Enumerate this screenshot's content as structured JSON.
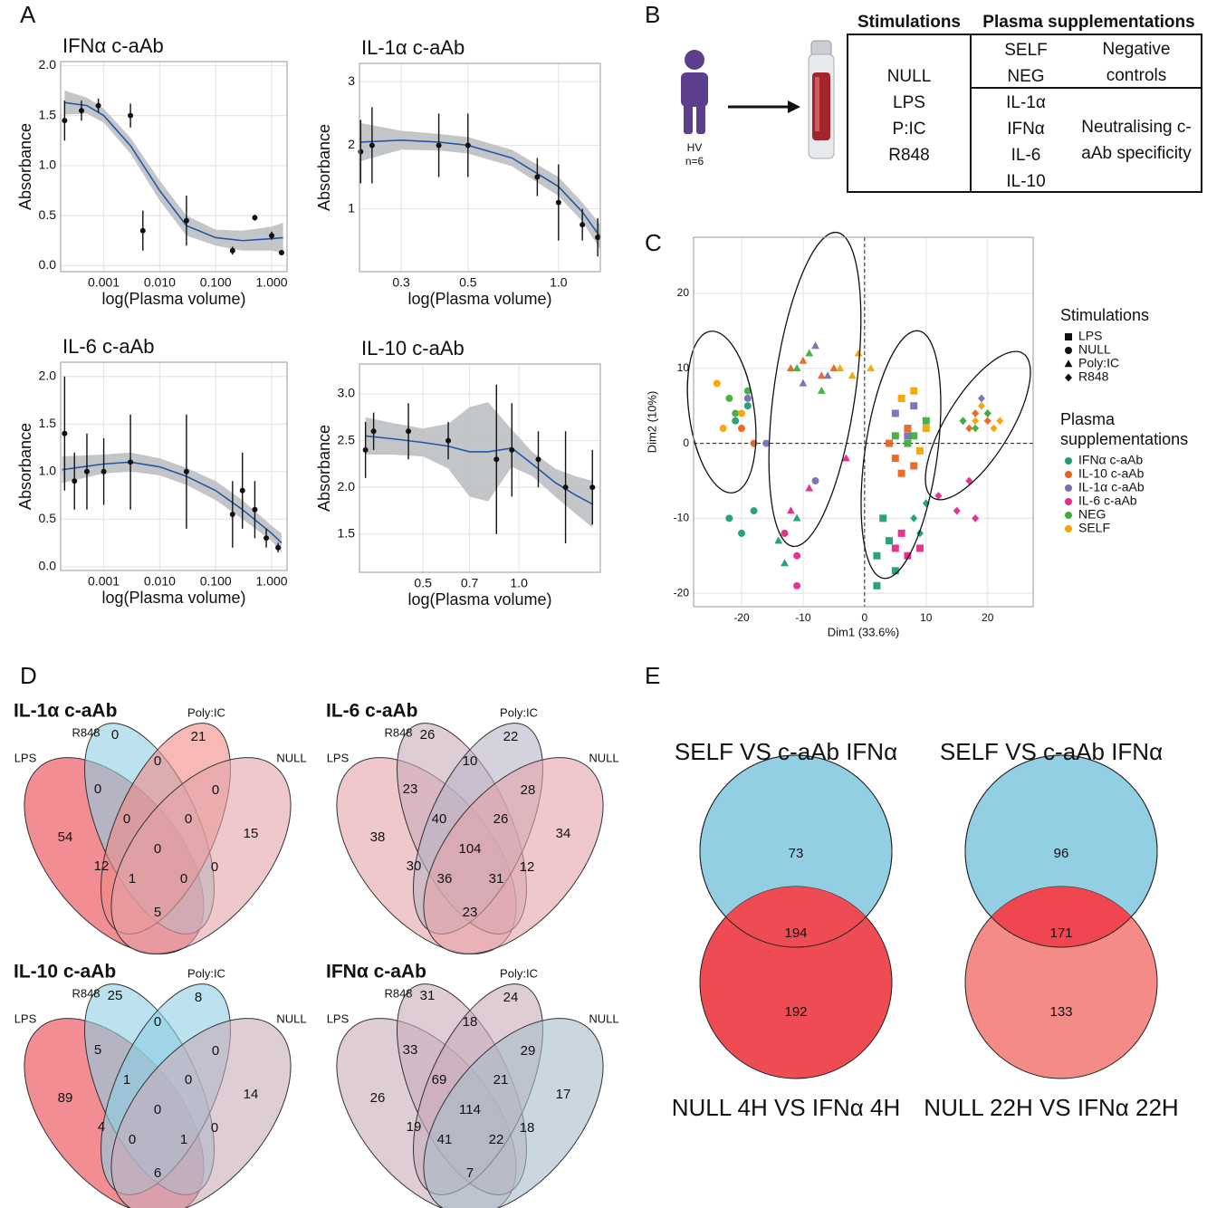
{
  "panel_labels": [
    "A",
    "B",
    "C",
    "D",
    "E"
  ],
  "diagram": {
    "subject": "HV",
    "n": "n=6",
    "table": {
      "headers": [
        "Stimulations",
        "Plasma supplementations"
      ],
      "stimulations": [
        "NULL",
        "LPS",
        "P:IC",
        "R848"
      ],
      "groups": [
        {
          "items": [
            "SELF",
            "NEG"
          ],
          "label": "Negative controls"
        },
        {
          "items": [
            "IL-1α",
            "IFNα",
            "IL-6",
            "IL-10"
          ],
          "label": "Neutralising c-aAb specificity"
        }
      ]
    }
  },
  "chart_data": [
    {
      "type": "line",
      "title": "IFNα c-aAb",
      "xlabel": "log(Plasma volume)",
      "ylabel": "Absorbance",
      "xscale": "log",
      "grid": true,
      "xlim": [
        0.00017,
        1.88
      ],
      "xticks": [
        0.001,
        {
          "value": 0.01,
          "label": "0.010"
        },
        {
          "value": 0.1,
          "label": "0.100"
        },
        {
          "value": 1,
          "label": "1.000"
        }
      ],
      "ylim": [
        -0.06,
        2.04
      ],
      "yticks": [
        {
          "value": 0,
          "label": "0.0"
        },
        0.5,
        {
          "value": 1,
          "label": "1.0"
        },
        1.5,
        {
          "value": 2,
          "label": "2.0"
        }
      ],
      "color": "#2557a7",
      "band_color": "#bcc0c2",
      "points": {
        "x": [
          0.0002,
          0.0004,
          0.0008,
          0.003,
          0.005,
          0.03,
          0.2,
          0.5,
          1.0,
          1.5
        ],
        "values": [
          1.45,
          1.55,
          1.6,
          1.5,
          0.35,
          0.45,
          0.15,
          0.48,
          0.3,
          0.13
        ],
        "errors": [
          0.2,
          0.1,
          0.07,
          0.12,
          0.2,
          0.25,
          0.04,
          0.03,
          0.04,
          0.02
        ]
      },
      "fit": {
        "x": [
          0.0002,
          0.0005,
          0.001,
          0.003,
          0.01,
          0.03,
          0.1,
          0.3,
          1,
          1.6
        ],
        "values": [
          1.63,
          1.6,
          1.5,
          1.2,
          0.75,
          0.4,
          0.28,
          0.25,
          0.27,
          0.28
        ],
        "lower": [
          1.51,
          1.52,
          1.43,
          1.12,
          0.65,
          0.3,
          0.2,
          0.15,
          0.15,
          0.13
        ],
        "upper": [
          1.75,
          1.68,
          1.57,
          1.28,
          0.85,
          0.5,
          0.36,
          0.35,
          0.39,
          0.43
        ]
      }
    },
    {
      "type": "line",
      "title": "IL-1α c-aAb",
      "xlabel": "log(Plasma volume)",
      "ylabel": "Absorbance",
      "xscale": "log",
      "grid": true,
      "xlim": [
        0.218,
        1.377
      ],
      "xticks": [
        0.3,
        0.5,
        {
          "value": 1,
          "label": "1.0"
        }
      ],
      "ylim": [
        0.01,
        3.29
      ],
      "yticks": [
        1,
        2,
        3
      ],
      "color": "#2557a7",
      "band_color": "#bcc0c2",
      "points": {
        "x": [
          0.22,
          0.24,
          0.4,
          0.5,
          0.85,
          1.0,
          1.2,
          1.35
        ],
        "values": [
          1.9,
          2.0,
          2.0,
          2.0,
          1.5,
          1.1,
          0.75,
          0.55
        ],
        "errors": [
          0.5,
          0.6,
          0.5,
          0.5,
          0.3,
          0.6,
          0.25,
          0.3
        ]
      },
      "fit": {
        "x": [
          0.22,
          0.3,
          0.4,
          0.5,
          0.7,
          1.0,
          1.2,
          1.38
        ],
        "values": [
          2.05,
          2.08,
          2.05,
          2.0,
          1.8,
          1.35,
          0.95,
          0.55
        ],
        "lower": [
          1.75,
          1.93,
          1.92,
          1.87,
          1.67,
          1.2,
          0.8,
          0.35
        ],
        "upper": [
          2.35,
          2.23,
          2.18,
          2.13,
          1.93,
          1.5,
          1.1,
          0.75
        ]
      }
    },
    {
      "type": "line",
      "title": "IL-6 c-aAb",
      "xlabel": "log(Plasma volume)",
      "ylabel": "Absorbance",
      "xscale": "log",
      "grid": true,
      "xlim": [
        0.00017,
        1.88
      ],
      "xticks": [
        0.001,
        {
          "value": 0.01,
          "label": "0.010"
        },
        {
          "value": 0.1,
          "label": "0.100"
        },
        {
          "value": 1,
          "label": "1.000"
        }
      ],
      "ylim": [
        -0.04,
        2.15
      ],
      "yticks": [
        {
          "value": 0,
          "label": "0.0"
        },
        0.5,
        {
          "value": 1,
          "label": "1.0"
        },
        1.5,
        {
          "value": 2,
          "label": "2.0"
        }
      ],
      "color": "#2557a7",
      "band_color": "#bcc0c2",
      "points": {
        "x": [
          0.0002,
          0.0003,
          0.0005,
          0.001,
          0.003,
          0.03,
          0.2,
          0.3,
          0.5,
          0.8,
          1.3
        ],
        "values": [
          1.4,
          0.9,
          1.0,
          1.0,
          1.1,
          1.0,
          0.55,
          0.8,
          0.6,
          0.3,
          0.2
        ],
        "errors": [
          0.6,
          0.3,
          0.4,
          0.35,
          0.5,
          0.6,
          0.35,
          0.4,
          0.3,
          0.1,
          0.05
        ]
      },
      "fit": {
        "x": [
          0.00018,
          0.001,
          0.003,
          0.01,
          0.03,
          0.1,
          0.3,
          1,
          1.5
        ],
        "values": [
          1.02,
          1.08,
          1.1,
          1.05,
          0.95,
          0.8,
          0.6,
          0.35,
          0.25
        ],
        "lower": [
          0.88,
          0.98,
          1.0,
          0.96,
          0.86,
          0.7,
          0.5,
          0.27,
          0.15
        ],
        "upper": [
          1.16,
          1.18,
          1.2,
          1.14,
          1.04,
          0.9,
          0.7,
          0.43,
          0.35
        ]
      }
    },
    {
      "type": "line",
      "title": "IL-10 c-aAb",
      "xlabel": "log(Plasma volume)",
      "ylabel": "Absorbance",
      "xscale": "log",
      "grid": true,
      "xlim": [
        0.316,
        1.8
      ],
      "xticks": [
        0.5,
        0.7,
        {
          "value": 1,
          "label": "1.0"
        }
      ],
      "ylim": [
        1.09,
        3.32
      ],
      "yticks": [
        1.5,
        {
          "value": 2,
          "label": "2.0"
        },
        2.5,
        {
          "value": 3,
          "label": "3.0"
        }
      ],
      "color": "#2557a7",
      "band_color": "#bcc0c2",
      "points": {
        "x": [
          0.33,
          0.35,
          0.45,
          0.6,
          0.85,
          0.95,
          1.15,
          1.4,
          1.7
        ],
        "values": [
          2.4,
          2.6,
          2.6,
          2.5,
          2.3,
          2.4,
          2.3,
          2.0,
          2.0
        ],
        "errors": [
          0.3,
          0.2,
          0.3,
          0.2,
          0.8,
          0.5,
          0.3,
          0.6,
          0.4
        ]
      },
      "fit": {
        "x": [
          0.33,
          0.4,
          0.5,
          0.6,
          0.7,
          0.8,
          0.95,
          1.1,
          1.3,
          1.5,
          1.7
        ],
        "values": [
          2.55,
          2.52,
          2.48,
          2.44,
          2.38,
          2.38,
          2.42,
          2.25,
          2.05,
          1.92,
          1.82
        ],
        "lower": [
          2.35,
          2.35,
          2.33,
          2.2,
          1.9,
          1.85,
          2.22,
          2.12,
          1.9,
          1.72,
          1.57
        ],
        "upper": [
          2.75,
          2.69,
          2.63,
          2.68,
          2.86,
          2.91,
          2.62,
          2.38,
          2.2,
          2.12,
          2.07
        ]
      }
    },
    {
      "type": "scatter",
      "xlabel": "Dim1 (33.6%)",
      "ylabel": "Dim2 (10%)",
      "grid": true,
      "xlim": [
        -27.8,
        27.4
      ],
      "xticks": [
        -20,
        -10,
        0,
        10,
        20
      ],
      "ylim": [
        -21.8,
        27.5
      ],
      "yticks": [
        -20,
        -10,
        0,
        10,
        20
      ],
      "stimulations": {
        "title": "Stimulations",
        "names": [
          "LPS",
          "NULL",
          "Poly:IC",
          "R848"
        ]
      },
      "legend_title": [
        "Plasma",
        "supplementations"
      ],
      "series": [
        {
          "name": "IFNα c-aAb",
          "color": "#1b9e77",
          "x": [
            -22,
            -20,
            -18,
            -21,
            -19,
            -13,
            -14,
            -11,
            2,
            4,
            5,
            3,
            2,
            8,
            10,
            9
          ],
          "values": [
            -10,
            -12,
            -9,
            3,
            5,
            -16,
            -13,
            -10,
            -15,
            -13,
            -17,
            -10,
            -19,
            -10,
            -8,
            -12
          ],
          "stimulation_index": [
            1,
            1,
            1,
            1,
            1,
            2,
            2,
            2,
            0,
            0,
            0,
            0,
            0,
            3,
            3,
            3
          ]
        },
        {
          "name": "IL-10 c-aAb",
          "color": "#e8641b",
          "x": [
            -18,
            -20,
            -12,
            -10,
            -7,
            -5,
            5,
            6,
            7,
            4,
            8,
            18,
            20,
            17
          ],
          "values": [
            0,
            2,
            10,
            11,
            9,
            10,
            -2,
            -4,
            2,
            0,
            -3,
            4,
            3,
            2
          ],
          "stimulation_index": [
            1,
            1,
            2,
            2,
            2,
            2,
            0,
            0,
            0,
            0,
            0,
            3,
            3,
            3
          ]
        },
        {
          "name": "IL-1α c-aAb",
          "color": "#7570b3",
          "x": [
            -19,
            -16,
            -8,
            -10,
            -8,
            -6,
            5,
            7,
            8,
            19,
            20,
            16
          ],
          "values": [
            6,
            0,
            -5,
            8,
            13,
            9,
            4,
            1,
            5,
            6,
            4,
            3
          ],
          "stimulation_index": [
            1,
            1,
            1,
            2,
            2,
            2,
            0,
            0,
            0,
            3,
            3,
            3
          ]
        },
        {
          "name": "IL-6 c-aAb",
          "color": "#e7298a",
          "x": [
            -11,
            -13,
            -11,
            -9,
            -12,
            -3,
            5,
            7,
            9,
            6,
            12,
            15,
            17,
            18
          ],
          "values": [
            -19,
            -12,
            -15,
            -6,
            -9,
            -2,
            -14,
            -15,
            -14,
            -12,
            -7,
            -9,
            -5,
            -10
          ],
          "stimulation_index": [
            1,
            1,
            1,
            2,
            2,
            2,
            0,
            0,
            0,
            0,
            3,
            3,
            3,
            3
          ]
        },
        {
          "name": "NEG",
          "color": "#3fae3a",
          "x": [
            -21,
            -19,
            -22,
            -9,
            -11,
            -7,
            5,
            7,
            8,
            10,
            16,
            18,
            20
          ],
          "values": [
            4,
            7,
            6,
            12,
            10,
            7,
            1,
            0,
            1,
            3,
            3,
            2,
            4
          ],
          "stimulation_index": [
            1,
            1,
            1,
            2,
            2,
            2,
            0,
            0,
            0,
            0,
            3,
            3,
            3
          ]
        },
        {
          "name": "SELF",
          "color": "#f5a300",
          "x": [
            -24,
            -20,
            -23,
            -4,
            -2,
            -1,
            1,
            6,
            8,
            10,
            9,
            18,
            21,
            19,
            22
          ],
          "values": [
            8,
            4,
            2,
            10,
            9,
            12,
            10,
            6,
            7,
            2,
            -1,
            3,
            2,
            5,
            3
          ],
          "stimulation_index": [
            1,
            1,
            1,
            2,
            2,
            2,
            2,
            0,
            0,
            0,
            0,
            3,
            3,
            3,
            3
          ]
        }
      ]
    },
    {
      "type": "venn4",
      "title": "IL-1α c-aAb",
      "sets": [
        "LPS",
        "R848",
        "Poly:IC",
        "NULL"
      ],
      "colors": [
        "#e8414b",
        "#8ecfe3",
        "#f08a86",
        "#e4a3a8"
      ],
      "regions": [
        0,
        21,
        54,
        15,
        0,
        0,
        0,
        0,
        0,
        0,
        12,
        0,
        1,
        0,
        5
      ]
    },
    {
      "type": "venn4",
      "title": "IL-6 c-aAb",
      "sets": [
        "LPS",
        "R848",
        "Poly:IC",
        "NULL"
      ],
      "colors": [
        "#e4a3a8",
        "#c9abbb",
        "#b9b4c8",
        "#e4a3a8"
      ],
      "regions": [
        26,
        22,
        38,
        34,
        10,
        23,
        28,
        40,
        26,
        104,
        30,
        12,
        36,
        31,
        23
      ]
    },
    {
      "type": "venn4",
      "title": "IL-10 c-aAb",
      "sets": [
        "LPS",
        "R848",
        "Poly:IC",
        "NULL"
      ],
      "colors": [
        "#e8414b",
        "#8ecfe3",
        "#8ecfe3",
        "#c9abbb"
      ],
      "regions": [
        25,
        8,
        89,
        14,
        0,
        5,
        0,
        1,
        0,
        0,
        4,
        0,
        0,
        1,
        6
      ]
    },
    {
      "type": "venn4",
      "title": "IFNα c-aAb",
      "sets": [
        "LPS",
        "R848",
        "Poly:IC",
        "NULL"
      ],
      "colors": [
        "#c9abbb",
        "#c9abbb",
        "#c9abbb",
        "#a9bccb"
      ],
      "regions": [
        31,
        24,
        26,
        17,
        18,
        33,
        29,
        69,
        21,
        114,
        19,
        18,
        41,
        22,
        7
      ]
    },
    {
      "type": "venn2",
      "sets": [
        "SELF VS c-aAb IFNα",
        "NULL 4H VS IFNα 4H"
      ],
      "colors": [
        "#92cfe2",
        "#ee4b52",
        "#ee4b52"
      ],
      "regions": [
        73,
        194,
        192
      ]
    },
    {
      "type": "venn2",
      "sets": [
        "SELF VS c-aAb IFNα",
        "NULL 22H VS IFNα 22H"
      ],
      "colors": [
        "#92cfe2",
        "#f48b86",
        "#ef4650"
      ],
      "regions": [
        96,
        171,
        133
      ]
    }
  ]
}
